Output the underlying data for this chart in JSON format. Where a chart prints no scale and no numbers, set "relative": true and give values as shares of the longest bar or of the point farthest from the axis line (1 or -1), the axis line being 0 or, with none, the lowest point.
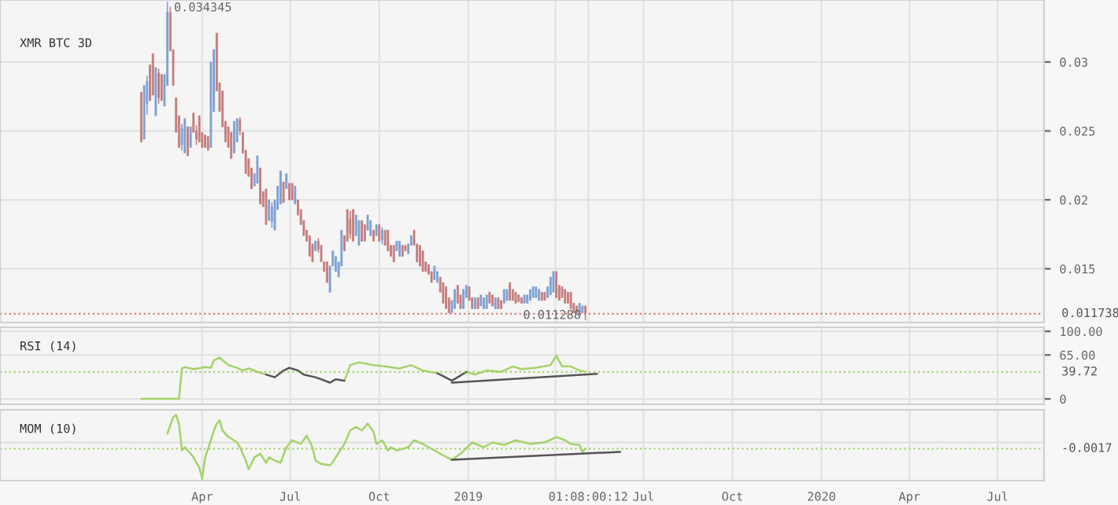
{
  "chart_data": [
    {
      "type": "candlestick",
      "title": "XMR BTC 3D",
      "x": [
        "2018-01-28",
        "2018-01-31",
        "2018-02-03",
        "2018-02-06",
        "2018-02-09",
        "2018-02-12",
        "2018-02-15",
        "2018-02-18",
        "2018-02-21",
        "2018-02-24",
        "2018-02-27",
        "2018-03-02",
        "2018-03-05",
        "2018-03-08",
        "2018-03-11",
        "2018-03-14",
        "2018-03-17",
        "2018-03-20",
        "2018-03-23",
        "2018-03-26",
        "2018-03-29",
        "2018-04-01",
        "2018-04-04",
        "2018-04-07",
        "2018-04-10",
        "2018-04-13",
        "2018-04-16",
        "2018-04-19",
        "2018-04-22",
        "2018-04-25",
        "2018-04-28",
        "2018-05-01",
        "2018-05-04",
        "2018-05-07",
        "2018-05-10",
        "2018-05-13",
        "2018-05-16",
        "2018-05-19",
        "2018-05-22",
        "2018-05-25",
        "2018-05-28",
        "2018-05-31",
        "2018-06-03",
        "2018-06-06",
        "2018-06-09",
        "2018-06-12",
        "2018-06-15",
        "2018-06-18",
        "2018-06-21",
        "2018-06-24",
        "2018-06-27",
        "2018-06-30",
        "2018-07-03",
        "2018-07-06",
        "2018-07-09",
        "2018-07-12",
        "2018-07-15",
        "2018-07-18",
        "2018-07-21",
        "2018-07-24",
        "2018-07-27",
        "2018-07-30",
        "2018-08-02",
        "2018-08-05",
        "2018-08-08",
        "2018-08-11",
        "2018-08-14",
        "2018-08-17",
        "2018-08-20",
        "2018-08-23",
        "2018-08-26",
        "2018-08-29",
        "2018-09-01",
        "2018-09-04",
        "2018-09-07",
        "2018-09-10",
        "2018-09-13",
        "2018-09-16",
        "2018-09-19",
        "2018-09-22",
        "2018-09-25",
        "2018-09-28",
        "2018-10-01",
        "2018-10-04",
        "2018-10-07",
        "2018-10-10",
        "2018-10-13",
        "2018-10-16",
        "2018-10-19",
        "2018-10-22",
        "2018-10-25",
        "2018-10-28",
        "2018-10-31",
        "2018-11-03",
        "2018-11-06",
        "2018-11-09",
        "2018-11-12",
        "2018-11-15",
        "2018-11-18",
        "2018-11-21",
        "2018-11-24",
        "2018-11-27",
        "2018-11-30",
        "2018-12-03",
        "2018-12-06",
        "2018-12-09",
        "2018-12-12",
        "2018-12-15",
        "2018-12-18",
        "2018-12-21",
        "2018-12-24",
        "2018-12-27",
        "2018-12-30",
        "2019-01-02",
        "2019-01-05",
        "2019-01-08",
        "2019-01-11",
        "2019-01-14",
        "2019-01-17",
        "2019-01-20",
        "2019-01-23",
        "2019-01-26",
        "2019-01-29",
        "2019-02-01",
        "2019-02-04",
        "2019-02-07",
        "2019-02-10",
        "2019-02-13",
        "2019-02-16",
        "2019-02-19",
        "2019-02-22",
        "2019-02-25",
        "2019-02-28",
        "2019-03-03",
        "2019-03-06",
        "2019-03-09",
        "2019-03-12",
        "2019-03-15",
        "2019-03-18",
        "2019-03-21",
        "2019-03-24",
        "2019-03-27",
        "2019-03-30",
        "2019-04-02",
        "2019-04-05",
        "2019-04-08",
        "2019-04-11",
        "2019-04-14",
        "2019-04-17",
        "2019-04-20",
        "2019-04-23",
        "2019-04-26",
        "2019-04-29",
        "2019-05-02"
      ],
      "ohlc": [
        [
          0.0278,
          0.0278,
          0.0242,
          0.0242
        ],
        [
          0.0244,
          0.0283,
          0.0244,
          0.0283
        ],
        [
          0.027,
          0.029,
          0.0262,
          0.0286
        ],
        [
          0.0298,
          0.0298,
          0.0272,
          0.0272
        ],
        [
          0.0306,
          0.0306,
          0.0276,
          0.0276
        ],
        [
          0.0261,
          0.0296,
          0.0261,
          0.0296
        ],
        [
          0.0292,
          0.0295,
          0.027,
          0.0274
        ],
        [
          0.0291,
          0.0291,
          0.0272,
          0.0272
        ],
        [
          0.0268,
          0.0291,
          0.0268,
          0.0291
        ],
        [
          0.0283,
          0.034345,
          0.0283,
          0.0336
        ],
        [
          0.0336,
          0.034,
          0.0308,
          0.0308
        ],
        [
          0.0309,
          0.0309,
          0.0283,
          0.0283
        ],
        [
          0.0274,
          0.0274,
          0.0249,
          0.0249
        ],
        [
          0.0261,
          0.0261,
          0.0238,
          0.0238
        ],
        [
          0.024,
          0.0255,
          0.0236,
          0.0252
        ],
        [
          0.0234,
          0.0259,
          0.0234,
          0.0259
        ],
        [
          0.0253,
          0.0253,
          0.0232,
          0.0232
        ],
        [
          0.0238,
          0.0253,
          0.0238,
          0.0253
        ],
        [
          0.0263,
          0.0263,
          0.0249,
          0.0249
        ],
        [
          0.025,
          0.0254,
          0.024,
          0.0244
        ],
        [
          0.0261,
          0.0261,
          0.0242,
          0.0242
        ],
        [
          0.0249,
          0.0249,
          0.0238,
          0.0238
        ],
        [
          0.0247,
          0.0247,
          0.0238,
          0.0238
        ],
        [
          0.0246,
          0.0246,
          0.0236,
          0.0236
        ],
        [
          0.0238,
          0.03,
          0.0238,
          0.03
        ],
        [
          0.0264,
          0.0309,
          0.0264,
          0.0309
        ],
        [
          0.0321,
          0.0321,
          0.0279,
          0.0279
        ],
        [
          0.0285,
          0.0285,
          0.0264,
          0.0264
        ],
        [
          0.0279,
          0.0279,
          0.0253,
          0.0253
        ],
        [
          0.0257,
          0.0257,
          0.0242,
          0.0242
        ],
        [
          0.0253,
          0.0253,
          0.0238,
          0.0238
        ],
        [
          0.0249,
          0.0249,
          0.023,
          0.023
        ],
        [
          0.0234,
          0.0257,
          0.0234,
          0.0257
        ],
        [
          0.0242,
          0.0259,
          0.0242,
          0.0259
        ],
        [
          0.0258,
          0.026,
          0.0247,
          0.025
        ],
        [
          0.0249,
          0.0249,
          0.0234,
          0.0234
        ],
        [
          0.0236,
          0.0236,
          0.0219,
          0.0219
        ],
        [
          0.023,
          0.023,
          0.0217,
          0.0217
        ],
        [
          0.0223,
          0.0223,
          0.0208,
          0.0208
        ],
        [
          0.021,
          0.0219,
          0.021,
          0.0219
        ],
        [
          0.0212,
          0.0232,
          0.0212,
          0.0232
        ],
        [
          0.0223,
          0.0223,
          0.0197,
          0.0197
        ],
        [
          0.0206,
          0.0206,
          0.0195,
          0.0195
        ],
        [
          0.0208,
          0.0208,
          0.0182,
          0.0182
        ],
        [
          0.0185,
          0.02,
          0.0185,
          0.02
        ],
        [
          0.0184,
          0.0198,
          0.018,
          0.0195
        ],
        [
          0.0178,
          0.02,
          0.0178,
          0.02
        ],
        [
          0.0193,
          0.021,
          0.0193,
          0.021
        ],
        [
          0.0197,
          0.0221,
          0.0197,
          0.0221
        ],
        [
          0.0213,
          0.0213,
          0.0198,
          0.0198
        ],
        [
          0.0208,
          0.0219,
          0.0208,
          0.0219
        ],
        [
          0.0212,
          0.0212,
          0.02,
          0.02
        ],
        [
          0.0212,
          0.0212,
          0.02,
          0.02
        ],
        [
          0.0197,
          0.021,
          0.0197,
          0.021
        ],
        [
          0.02,
          0.02,
          0.0189,
          0.0189
        ],
        [
          0.0193,
          0.0193,
          0.0182,
          0.0182
        ],
        [
          0.0185,
          0.0185,
          0.0174,
          0.0174
        ],
        [
          0.0178,
          0.0178,
          0.017,
          0.017
        ],
        [
          0.0174,
          0.0174,
          0.0159,
          0.0159
        ],
        [
          0.0168,
          0.0168,
          0.0155,
          0.0155
        ],
        [
          0.0163,
          0.017,
          0.0163,
          0.017
        ],
        [
          0.017,
          0.0172,
          0.0162,
          0.0164
        ],
        [
          0.0167,
          0.0167,
          0.0155,
          0.0155
        ],
        [
          0.0155,
          0.0155,
          0.0148,
          0.0148
        ],
        [
          0.0155,
          0.0155,
          0.014,
          0.014
        ],
        [
          0.0133,
          0.0152,
          0.0133,
          0.0152
        ],
        [
          0.0152,
          0.0163,
          0.0152,
          0.0163
        ],
        [
          0.0148,
          0.0159,
          0.0148,
          0.0159
        ],
        [
          0.0144,
          0.0155,
          0.0144,
          0.0155
        ],
        [
          0.0152,
          0.0178,
          0.0152,
          0.0178
        ],
        [
          0.0174,
          0.0174,
          0.0163,
          0.0163
        ],
        [
          0.0193,
          0.0193,
          0.017,
          0.017
        ],
        [
          0.0186,
          0.0192,
          0.0172,
          0.0175
        ],
        [
          0.0193,
          0.0193,
          0.017,
          0.017
        ],
        [
          0.0174,
          0.0189,
          0.0174,
          0.0189
        ],
        [
          0.0167,
          0.0185,
          0.0167,
          0.0185
        ],
        [
          0.0185,
          0.0185,
          0.017,
          0.017
        ],
        [
          0.0182,
          0.0182,
          0.017,
          0.017
        ],
        [
          0.0178,
          0.0189,
          0.0178,
          0.0189
        ],
        [
          0.0174,
          0.0185,
          0.0174,
          0.0185
        ],
        [
          0.0178,
          0.0178,
          0.017,
          0.017
        ],
        [
          0.0174,
          0.0182,
          0.0174,
          0.0182
        ],
        [
          0.0182,
          0.0182,
          0.017,
          0.017
        ],
        [
          0.0171,
          0.018,
          0.0168,
          0.0178
        ],
        [
          0.0178,
          0.0178,
          0.0167,
          0.0167
        ],
        [
          0.0178,
          0.0178,
          0.0163,
          0.0163
        ],
        [
          0.0167,
          0.0167,
          0.0159,
          0.0159
        ],
        [
          0.0167,
          0.0167,
          0.0155,
          0.0155
        ],
        [
          0.0163,
          0.017,
          0.0163,
          0.017
        ],
        [
          0.0159,
          0.017,
          0.0159,
          0.017
        ],
        [
          0.0167,
          0.0167,
          0.0159,
          0.0159
        ],
        [
          0.0167,
          0.0167,
          0.0163,
          0.0163
        ],
        [
          0.0161,
          0.0168,
          0.0161,
          0.0168
        ],
        [
          0.0167,
          0.0174,
          0.0167,
          0.0174
        ],
        [
          0.0178,
          0.0178,
          0.0167,
          0.0167
        ],
        [
          0.0168,
          0.0168,
          0.0155,
          0.0155
        ],
        [
          0.0167,
          0.0167,
          0.0152,
          0.0152
        ],
        [
          0.0163,
          0.0163,
          0.0148,
          0.0148
        ],
        [
          0.0155,
          0.0155,
          0.0148,
          0.0148
        ],
        [
          0.0153,
          0.0153,
          0.0146,
          0.0146
        ],
        [
          0.0148,
          0.0148,
          0.014,
          0.014
        ],
        [
          0.0142,
          0.0152,
          0.0142,
          0.0152
        ],
        [
          0.014,
          0.0148,
          0.014,
          0.0148
        ],
        [
          0.0144,
          0.0144,
          0.0133,
          0.0133
        ],
        [
          0.014,
          0.014,
          0.0125,
          0.0125
        ],
        [
          0.0137,
          0.0137,
          0.0121,
          0.0121
        ],
        [
          0.0129,
          0.0129,
          0.0118,
          0.0118
        ],
        [
          0.0118,
          0.0127,
          0.0118,
          0.0127
        ],
        [
          0.0121,
          0.0135,
          0.0121,
          0.0135
        ],
        [
          0.0138,
          0.0138,
          0.0125,
          0.0125
        ],
        [
          0.0131,
          0.0131,
          0.0121,
          0.0121
        ],
        [
          0.0121,
          0.0135,
          0.0121,
          0.0135
        ],
        [
          0.0129,
          0.0138,
          0.0129,
          0.0138
        ],
        [
          0.0137,
          0.0137,
          0.0127,
          0.0127
        ],
        [
          0.0129,
          0.0129,
          0.0121,
          0.0121
        ],
        [
          0.0121,
          0.0129,
          0.0121,
          0.0129
        ],
        [
          0.0129,
          0.0129,
          0.0121,
          0.0121
        ],
        [
          0.0123,
          0.0131,
          0.0123,
          0.0131
        ],
        [
          0.0121,
          0.0129,
          0.0121,
          0.0129
        ],
        [
          0.0121,
          0.0131,
          0.0121,
          0.0131
        ],
        [
          0.0133,
          0.0133,
          0.0125,
          0.0125
        ],
        [
          0.0131,
          0.0131,
          0.0123,
          0.0123
        ],
        [
          0.0121,
          0.0129,
          0.0121,
          0.0129
        ],
        [
          0.0129,
          0.0129,
          0.0121,
          0.0121
        ],
        [
          0.0127,
          0.0127,
          0.0121,
          0.0121
        ],
        [
          0.0125,
          0.0135,
          0.0125,
          0.0135
        ],
        [
          0.0127,
          0.0135,
          0.0127,
          0.0135
        ],
        [
          0.014,
          0.014,
          0.0127,
          0.0127
        ],
        [
          0.0135,
          0.0135,
          0.0127,
          0.0127
        ],
        [
          0.0133,
          0.0133,
          0.0125,
          0.0125
        ],
        [
          0.0131,
          0.0131,
          0.0126,
          0.0126
        ],
        [
          0.0129,
          0.0129,
          0.0125,
          0.0125
        ],
        [
          0.0125,
          0.0131,
          0.0125,
          0.0131
        ],
        [
          0.0125,
          0.0131,
          0.0125,
          0.0131
        ],
        [
          0.0127,
          0.0135,
          0.0127,
          0.0135
        ],
        [
          0.0129,
          0.0137,
          0.0129,
          0.0137
        ],
        [
          0.0129,
          0.0137,
          0.0129,
          0.0137
        ],
        [
          0.0127,
          0.0135,
          0.0127,
          0.0135
        ],
        [
          0.0133,
          0.0133,
          0.0127,
          0.0127
        ],
        [
          0.0133,
          0.0133,
          0.0127,
          0.0127
        ],
        [
          0.0129,
          0.0137,
          0.0129,
          0.0137
        ],
        [
          0.0131,
          0.0144,
          0.0131,
          0.0144
        ],
        [
          0.0133,
          0.0148,
          0.0133,
          0.0148
        ],
        [
          0.0148,
          0.0148,
          0.0129,
          0.0129
        ],
        [
          0.0138,
          0.0138,
          0.0127,
          0.0127
        ],
        [
          0.0137,
          0.0137,
          0.0129,
          0.0129
        ],
        [
          0.0135,
          0.0135,
          0.0125,
          0.0125
        ],
        [
          0.0133,
          0.0133,
          0.0125,
          0.0125
        ],
        [
          0.0133,
          0.0133,
          0.0121,
          0.0121
        ],
        [
          0.0125,
          0.0125,
          0.0118,
          0.0118
        ],
        [
          0.0123,
          0.0123,
          0.0118,
          0.0118
        ],
        [
          0.0116,
          0.0125,
          0.0116,
          0.0125
        ],
        [
          0.0118,
          0.0123,
          0.0118,
          0.0123
        ],
        [
          0.0123,
          0.0123,
          0.011288,
          0.011738
        ]
      ],
      "colors": [
        "#c47a7a",
        "#7b9fd3",
        "#7b9fd3",
        "#c47a7a",
        "#c47a7a",
        "#7b9fd3",
        "#c47a7a",
        "#c47a7a",
        "#7b9fd3",
        "#7b9fd3",
        "#c47a7a",
        "#c47a7a",
        "#c47a7a",
        "#c47a7a",
        "#7b9fd3",
        "#7b9fd3",
        "#c47a7a",
        "#7b9fd3",
        "#c47a7a",
        "#c47a7a",
        "#c47a7a",
        "#c47a7a",
        "#c47a7a",
        "#c47a7a",
        "#7b9fd3",
        "#7b9fd3",
        "#c47a7a",
        "#c47a7a",
        "#c47a7a",
        "#c47a7a",
        "#c47a7a",
        "#c47a7a",
        "#7b9fd3",
        "#7b9fd3",
        "#c47a7a",
        "#c47a7a",
        "#c47a7a",
        "#c47a7a",
        "#c47a7a",
        "#7b9fd3",
        "#7b9fd3",
        "#c47a7a",
        "#c47a7a",
        "#c47a7a",
        "#7b9fd3",
        "#7b9fd3",
        "#7b9fd3",
        "#7b9fd3",
        "#7b9fd3",
        "#c47a7a",
        "#7b9fd3",
        "#c47a7a",
        "#c47a7a",
        "#7b9fd3",
        "#c47a7a",
        "#c47a7a",
        "#c47a7a",
        "#c47a7a",
        "#c47a7a",
        "#c47a7a",
        "#7b9fd3",
        "#c47a7a",
        "#c47a7a",
        "#c47a7a",
        "#c47a7a",
        "#7b9fd3",
        "#7b9fd3",
        "#7b9fd3",
        "#7b9fd3",
        "#7b9fd3",
        "#c47a7a",
        "#c47a7a",
        "#c47a7a",
        "#c47a7a",
        "#7b9fd3",
        "#7b9fd3",
        "#c47a7a",
        "#c47a7a",
        "#7b9fd3",
        "#7b9fd3",
        "#c47a7a",
        "#7b9fd3",
        "#c47a7a",
        "#7b9fd3",
        "#c47a7a",
        "#c47a7a",
        "#c47a7a",
        "#c47a7a",
        "#7b9fd3",
        "#7b9fd3",
        "#c47a7a",
        "#c47a7a",
        "#7b9fd3",
        "#7b9fd3",
        "#c47a7a",
        "#c47a7a",
        "#c47a7a",
        "#c47a7a",
        "#c47a7a",
        "#c47a7a",
        "#c47a7a",
        "#7b9fd3",
        "#7b9fd3",
        "#c47a7a",
        "#c47a7a",
        "#c47a7a",
        "#c47a7a",
        "#7b9fd3",
        "#7b9fd3",
        "#c47a7a",
        "#c47a7a",
        "#7b9fd3",
        "#7b9fd3",
        "#c47a7a",
        "#c47a7a",
        "#7b9fd3",
        "#c47a7a",
        "#7b9fd3",
        "#7b9fd3",
        "#7b9fd3",
        "#c47a7a",
        "#c47a7a",
        "#7b9fd3",
        "#c47a7a",
        "#c47a7a",
        "#7b9fd3",
        "#7b9fd3",
        "#c47a7a",
        "#c47a7a",
        "#c47a7a",
        "#c47a7a",
        "#c47a7a",
        "#7b9fd3",
        "#7b9fd3",
        "#7b9fd3",
        "#7b9fd3",
        "#7b9fd3",
        "#7b9fd3",
        "#c47a7a",
        "#c47a7a",
        "#7b9fd3",
        "#7b9fd3",
        "#7b9fd3",
        "#c47a7a",
        "#c47a7a",
        "#c47a7a",
        "#c47a7a",
        "#c47a7a",
        "#c47a7a",
        "#c47a7a",
        "#c47a7a",
        "#7b9fd3",
        "#7b9fd3",
        "#c47a7a"
      ],
      "xlim": [
        "2017-09-04",
        "2020-08-18"
      ],
      "xticks": [
        {
          "value": "2018-04-01",
          "label": null
        },
        {
          "value": "2018-07-01",
          "label": null
        },
        {
          "value": "2018-10-01",
          "label": null
        },
        {
          "value": "2019-01-01",
          "label": null
        },
        {
          "value": "2019-04-01",
          "label": null
        },
        {
          "value": "2019-05-05",
          "label": null
        },
        {
          "value": "2019-07-01",
          "label": null
        },
        {
          "value": "2019-10-01",
          "label": null
        },
        {
          "value": "2020-01-01",
          "label": null
        },
        {
          "value": "2020-04-01",
          "label": null
        },
        {
          "value": "2020-07-01",
          "label": null
        }
      ],
      "ylim": [
        0.0111,
        0.0345
      ],
      "yticks": [
        0.015,
        0.02,
        0.025,
        0.03
      ],
      "grid": true,
      "tick_labels": "y",
      "ref_lines": [
        {
          "axis": "y",
          "value": 0.011738,
          "label": "0.011738",
          "color": "#e07b7b",
          "line_style": "dotted"
        }
      ],
      "annotations": [
        {
          "text": "0.034345",
          "x": "2018-02-24",
          "y": 0.034345
        },
        {
          "text": "0.011288",
          "x": "2019-05-02",
          "y": 0.011288
        }
      ]
    },
    {
      "type": "line",
      "title": "RSI (14)",
      "series": [
        {
          "color": "#a5d36a",
          "x": [
            "2018-01-28",
            "2018-03-08",
            "2018-03-11",
            "2018-03-14",
            "2018-03-23",
            "2018-04-04",
            "2018-04-10",
            "2018-04-13",
            "2018-04-19",
            "2018-04-28",
            "2018-05-07",
            "2018-05-13",
            "2018-05-19",
            "2018-05-28",
            "2018-06-06",
            "2018-06-15",
            "2018-06-24",
            "2018-06-30",
            "2018-07-09",
            "2018-07-15",
            "2018-07-27",
            "2018-08-02",
            "2018-08-11",
            "2018-08-17",
            "2018-08-26",
            "2018-09-01",
            "2018-09-10",
            "2018-09-25",
            "2018-10-07",
            "2018-10-22",
            "2018-11-03",
            "2018-11-15",
            "2018-11-30",
            "2018-12-15",
            "2018-12-21",
            "2018-12-30",
            "2019-01-08",
            "2019-01-20",
            "2019-02-04",
            "2019-02-16",
            "2019-02-25",
            "2019-03-12",
            "2019-03-27",
            "2019-04-02",
            "2019-04-08",
            "2019-04-17",
            "2019-04-26",
            "2019-05-02"
          ],
          "values": [
            0,
            0,
            45,
            47,
            44,
            47,
            46,
            57,
            61,
            50,
            46,
            42,
            45,
            40,
            36,
            null,
            null,
            null,
            null,
            null,
            null,
            null,
            null,
            null,
            27,
            50,
            54,
            50,
            48,
            45,
            50,
            42,
            38,
            null,
            null,
            40,
            36,
            42,
            40,
            48,
            44,
            46,
            50,
            64,
            48,
            48,
            42,
            40
          ]
        },
        {
          "color": "#555555",
          "x": [
            "2018-06-06",
            "2018-06-15",
            "2018-06-24",
            "2018-06-30",
            "2018-07-09",
            "2018-07-15",
            "2018-07-27",
            "2018-08-02",
            "2018-08-11",
            "2018-08-17",
            "2018-08-26",
            "2018-10-13",
            "2018-11-30",
            "2018-12-15",
            "2018-12-21",
            "2018-12-30"
          ],
          "values": [
            36,
            32,
            42,
            46,
            42,
            36,
            32,
            29,
            24,
            29,
            27,
            null,
            38,
            27,
            32,
            40
          ]
        },
        {
          "color": "#555555",
          "x": [
            "2018-12-15",
            "2019-05-14"
          ],
          "values": [
            24,
            37
          ]
        }
      ],
      "xlim": [
        "2017-09-04",
        "2020-08-18"
      ],
      "xticks": [
        {
          "value": "2018-04-01",
          "label": null
        },
        {
          "value": "2018-07-01",
          "label": null
        },
        {
          "value": "2018-10-01",
          "label": null
        },
        {
          "value": "2019-01-01",
          "label": null
        },
        {
          "value": "2019-04-01",
          "label": null
        },
        {
          "value": "2019-05-05",
          "label": null
        },
        {
          "value": "2019-07-01",
          "label": null
        },
        {
          "value": "2019-10-01",
          "label": null
        },
        {
          "value": "2020-01-01",
          "label": null
        },
        {
          "value": "2020-04-01",
          "label": null
        },
        {
          "value": "2020-07-01",
          "label": null
        }
      ],
      "ylim": [
        -8,
        106
      ],
      "yticks": [
        {
          "value": 0,
          "label": "0"
        },
        {
          "value": 65,
          "label": "65.00"
        },
        {
          "value": 100,
          "label": "100.00"
        }
      ],
      "grid": true,
      "tick_labels": "y",
      "ref_lines": [
        {
          "axis": "y",
          "value": 39.72,
          "label": "39.72",
          "color": "#a5d36a",
          "line_style": "dotted"
        }
      ]
    },
    {
      "type": "line",
      "title": "MOM (10)",
      "relative": true,
      "series": [
        {
          "color": "#a5d36a",
          "x": [
            "2018-02-24",
            "2018-03-02",
            "2018-03-05",
            "2018-03-08",
            "2018-03-11",
            "2018-03-14",
            "2018-03-20",
            "2018-03-23",
            "2018-03-29",
            "2018-04-01",
            "2018-04-04",
            "2018-04-10",
            "2018-04-13",
            "2018-04-16",
            "2018-04-19",
            "2018-04-22",
            "2018-04-28",
            "2018-05-01",
            "2018-05-07",
            "2018-05-10",
            "2018-05-16",
            "2018-05-19",
            "2018-05-25",
            "2018-05-31",
            "2018-06-06",
            "2018-06-09",
            "2018-06-15",
            "2018-06-21",
            "2018-06-27",
            "2018-07-03",
            "2018-07-12",
            "2018-07-18",
            "2018-07-24",
            "2018-07-27",
            "2018-08-02",
            "2018-08-11",
            "2018-08-14",
            "2018-08-17",
            "2018-08-26",
            "2018-09-01",
            "2018-09-07",
            "2018-09-13",
            "2018-09-19",
            "2018-09-25",
            "2018-09-28",
            "2018-10-04",
            "2018-10-10",
            "2018-10-13",
            "2018-10-19",
            "2018-10-31",
            "2018-11-06",
            "2018-11-15",
            "2018-11-21",
            "2018-12-03",
            "2018-12-15",
            "2018-12-24",
            "2019-01-05",
            "2019-01-17",
            "2019-01-26",
            "2019-02-07",
            "2019-02-19",
            "2019-03-06",
            "2019-03-21",
            "2019-04-02",
            "2019-04-11",
            "2019-04-17",
            "2019-04-26",
            "2019-04-29",
            "2019-05-02"
          ],
          "values": [
            0.24,
            0.7,
            0.76,
            0.52,
            -0.22,
            -0.13,
            -0.31,
            -0.41,
            -0.69,
            -1,
            -0.41,
            0.06,
            0.33,
            0.52,
            0.61,
            0.33,
            0.15,
            0.11,
            0,
            -0.13,
            -0.5,
            -0.74,
            -0.41,
            -0.31,
            -0.56,
            -0.41,
            -0.5,
            -0.56,
            -0.13,
            0.06,
            -0.04,
            0.19,
            -0.13,
            -0.5,
            -0.59,
            -0.63,
            -0.54,
            -0.41,
            -0.04,
            0.33,
            0.43,
            0.33,
            0.52,
            0.3,
            -0.04,
            0.06,
            -0.22,
            -0.13,
            -0.22,
            -0.13,
            0.06,
            -0.04,
            -0.13,
            -0.31,
            -0.48,
            -0.31,
            0,
            -0.13,
            0,
            -0.07,
            0.06,
            -0.04,
            0,
            0.15,
            0.06,
            -0.04,
            -0.07,
            -0.26,
            -0.17
          ]
        },
        {
          "color": "#555555",
          "x": [
            "2018-12-15",
            "2019-06-07"
          ],
          "values": [
            -0.48,
            -0.26
          ]
        }
      ],
      "xlim": [
        "2017-09-04",
        "2020-08-18"
      ],
      "xticks": [
        {
          "value": "2018-04-01",
          "label": "Apr"
        },
        {
          "value": "2018-07-01",
          "label": "Jul"
        },
        {
          "value": "2018-10-01",
          "label": "Oct"
        },
        {
          "value": "2019-01-01",
          "label": "2019"
        },
        {
          "value": "2019-04-01",
          "label": null
        },
        {
          "value": "2019-05-05",
          "label": "01:08:00:12"
        },
        {
          "value": "2019-07-01",
          "label": "Jul"
        },
        {
          "value": "2019-10-01",
          "label": "Oct"
        },
        {
          "value": "2020-01-01",
          "label": "2020"
        },
        {
          "value": "2020-04-01",
          "label": "Apr"
        },
        {
          "value": "2020-07-01",
          "label": "Jul"
        }
      ],
      "grid": true,
      "tick_labels": "x",
      "ref_lines": [
        {
          "axis": "y",
          "value": -0.17,
          "color": "#a5d36a",
          "line_style": "dotted"
        }
      ],
      "annotations": [
        "-0.0017"
      ]
    }
  ]
}
